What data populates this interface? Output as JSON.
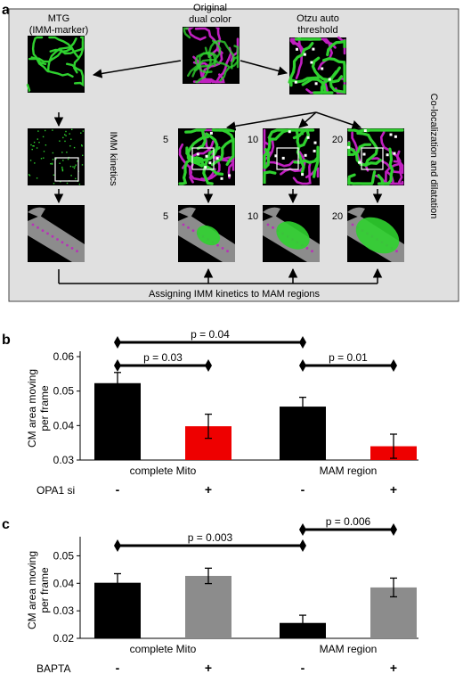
{
  "panel_a": {
    "letter": "a",
    "mtg_label": [
      "MTG",
      "(IMM-marker)"
    ],
    "original_label": [
      "Original",
      "dual color"
    ],
    "otzu_label": [
      "Otzu auto",
      "threshold"
    ],
    "kinetics_label": "IMM kinetics",
    "coloc_label": "Co-localization and dilatation",
    "assign_label": "Assigning IMM kinetics to MAM regions",
    "step_labels": [
      "5",
      "10",
      "20"
    ],
    "colors": {
      "green": "#2fd12f",
      "magenta": "#c020c0",
      "background": "#e0e0e0",
      "gray_cell": "#8c8c8c"
    }
  },
  "chart_data": [
    {
      "type": "bar",
      "panel": "b",
      "ylabel": "CM area moving per frame",
      "ylim": [
        0.03,
        0.06
      ],
      "yticks": [
        "0.03",
        "0.04",
        "0.05",
        "0.06"
      ],
      "groups": [
        "complete Mito",
        "MAM region"
      ],
      "condition_label": "OPA1 si",
      "condition_marks": [
        "-",
        "+",
        "-",
        "+"
      ],
      "bars": [
        {
          "group": "complete Mito",
          "condition": "-",
          "value": 0.0523,
          "error": 0.0031,
          "color": "#000000"
        },
        {
          "group": "complete Mito",
          "condition": "+",
          "value": 0.0398,
          "error": 0.0035,
          "color": "#ee0000"
        },
        {
          "group": "MAM region",
          "condition": "-",
          "value": 0.0455,
          "error": 0.0027,
          "color": "#000000"
        },
        {
          "group": "MAM region",
          "condition": "+",
          "value": 0.034,
          "error": 0.0035,
          "color": "#ee0000"
        }
      ],
      "comparisons": [
        {
          "from": 0,
          "to": 2,
          "label": "p = 0.04"
        },
        {
          "from": 0,
          "to": 1,
          "label": "p = 0.03"
        },
        {
          "from": 2,
          "to": 3,
          "label": "p = 0.01"
        }
      ]
    },
    {
      "type": "bar",
      "panel": "c",
      "ylabel": "CM area moving per frame",
      "ylim": [
        0.02,
        0.055
      ],
      "yticks": [
        "0.02",
        "0.03",
        "0.04",
        "0.05"
      ],
      "groups": [
        "complete Mito",
        "MAM region"
      ],
      "condition_label": "BAPTA",
      "condition_marks": [
        "-",
        "+",
        "-",
        "+"
      ],
      "bars": [
        {
          "group": "complete Mito",
          "condition": "-",
          "value": 0.0402,
          "error": 0.0033,
          "color": "#000000"
        },
        {
          "group": "complete Mito",
          "condition": "+",
          "value": 0.0427,
          "error": 0.0028,
          "color": "#8c8c8c"
        },
        {
          "group": "MAM region",
          "condition": "-",
          "value": 0.0256,
          "error": 0.0028,
          "color": "#000000"
        },
        {
          "group": "MAM region",
          "condition": "+",
          "value": 0.0385,
          "error": 0.0034,
          "color": "#8c8c8c"
        }
      ],
      "comparisons": [
        {
          "from": 0,
          "to": 2,
          "label": "p = 0.003"
        },
        {
          "from": 2,
          "to": 3,
          "label": "p = 0.006"
        }
      ]
    }
  ]
}
